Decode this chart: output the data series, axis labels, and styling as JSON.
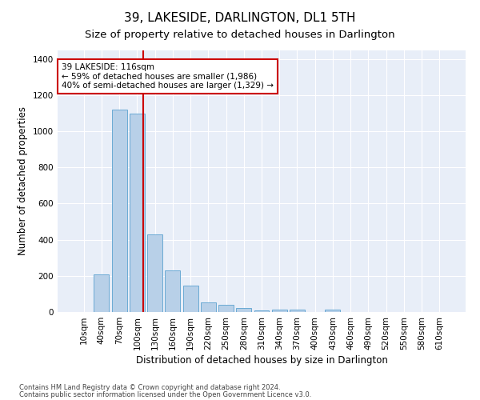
{
  "title": "39, LAKESIDE, DARLINGTON, DL1 5TH",
  "subtitle": "Size of property relative to detached houses in Darlington",
  "xlabel": "Distribution of detached houses by size in Darlington",
  "ylabel": "Number of detached properties",
  "footnote1": "Contains HM Land Registry data © Crown copyright and database right 2024.",
  "footnote2": "Contains public sector information licensed under the Open Government Licence v3.0.",
  "categories": [
    "10sqm",
    "40sqm",
    "70sqm",
    "100sqm",
    "130sqm",
    "160sqm",
    "190sqm",
    "220sqm",
    "250sqm",
    "280sqm",
    "310sqm",
    "340sqm",
    "370sqm",
    "400sqm",
    "430sqm",
    "460sqm",
    "490sqm",
    "520sqm",
    "550sqm",
    "580sqm",
    "610sqm"
  ],
  "values": [
    0,
    208,
    1120,
    1100,
    430,
    230,
    145,
    55,
    38,
    22,
    10,
    15,
    15,
    0,
    12,
    0,
    0,
    0,
    0,
    0,
    0
  ],
  "bar_color": "#b8d0e8",
  "bar_edge_color": "#6aaad4",
  "bg_color": "#e8eef8",
  "grid_color": "#ffffff",
  "vline_x": 3.33,
  "vline_color": "#cc0000",
  "vline_lw": 1.5,
  "annotation_text": "39 LAKESIDE: 116sqm\n← 59% of detached houses are smaller (1,986)\n40% of semi-detached houses are larger (1,329) →",
  "annotation_box_color": "#cc0000",
  "ylim": [
    0,
    1450
  ],
  "yticks": [
    0,
    200,
    400,
    600,
    800,
    1000,
    1200,
    1400
  ],
  "title_fontsize": 11,
  "subtitle_fontsize": 9.5,
  "xlabel_fontsize": 8.5,
  "ylabel_fontsize": 8.5,
  "tick_fontsize": 7.5,
  "annotation_fontsize": 7.5,
  "footnote_fontsize": 6.0
}
